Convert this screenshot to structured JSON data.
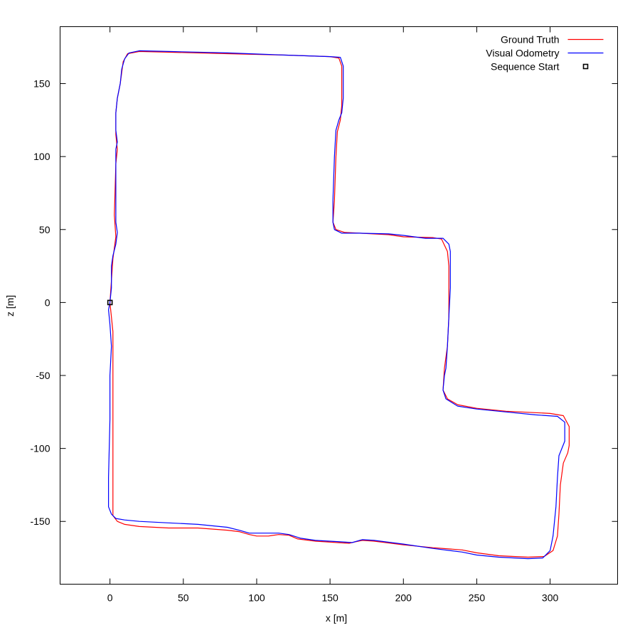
{
  "chart_data": {
    "type": "line",
    "title": "",
    "xlabel": "x [m]",
    "ylabel": "z [m]",
    "xlim": [
      -34,
      346
    ],
    "ylim": [
      -193,
      189
    ],
    "x_ticks": [
      0,
      50,
      100,
      150,
      200,
      250,
      300
    ],
    "y_ticks": [
      -150,
      -100,
      -50,
      0,
      50,
      100,
      150
    ],
    "grid": false,
    "legend_position": "top-right",
    "series": [
      {
        "name": "Ground Truth",
        "color": "#ff0000",
        "points": [
          [
            0,
            0
          ],
          [
            1,
            -10
          ],
          [
            2,
            -20
          ],
          [
            2,
            -30
          ],
          [
            2,
            -50
          ],
          [
            2,
            -80
          ],
          [
            2,
            -110
          ],
          [
            2,
            -140
          ],
          [
            2,
            -146
          ],
          [
            5,
            -150
          ],
          [
            10,
            -152
          ],
          [
            20,
            -153.5
          ],
          [
            40,
            -154.5
          ],
          [
            60,
            -154.5
          ],
          [
            80,
            -156
          ],
          [
            88,
            -157
          ],
          [
            95,
            -159
          ],
          [
            100,
            -160
          ],
          [
            108,
            -160
          ],
          [
            115,
            -159
          ],
          [
            122,
            -159.5
          ],
          [
            128,
            -162
          ],
          [
            140,
            -163.5
          ],
          [
            155,
            -164.5
          ],
          [
            163,
            -165
          ],
          [
            167,
            -164
          ],
          [
            172,
            -163
          ],
          [
            180,
            -163.5
          ],
          [
            200,
            -166
          ],
          [
            220,
            -168
          ],
          [
            240,
            -169.5
          ],
          [
            250,
            -171.5
          ],
          [
            265,
            -173.5
          ],
          [
            285,
            -174.5
          ],
          [
            296,
            -174
          ],
          [
            302,
            -170
          ],
          [
            305,
            -160
          ],
          [
            306,
            -145
          ],
          [
            307,
            -125
          ],
          [
            309,
            -110
          ],
          [
            312,
            -103
          ],
          [
            313,
            -98
          ],
          [
            313,
            -85
          ],
          [
            309,
            -77.5
          ],
          [
            300,
            -76
          ],
          [
            290,
            -75.5
          ],
          [
            270,
            -74.5
          ],
          [
            250,
            -72.5
          ],
          [
            237,
            -70
          ],
          [
            230,
            -66
          ],
          [
            227,
            -60
          ],
          [
            228,
            -45
          ],
          [
            230,
            -30
          ],
          [
            231,
            -10
          ],
          [
            231,
            10
          ],
          [
            231,
            25
          ],
          [
            230,
            35
          ],
          [
            226,
            43.5
          ],
          [
            220,
            44.5
          ],
          [
            200,
            45
          ],
          [
            190,
            46.5
          ],
          [
            170,
            47.5
          ],
          [
            160,
            48
          ],
          [
            154,
            50
          ],
          [
            152,
            55
          ],
          [
            153,
            70
          ],
          [
            154,
            100
          ],
          [
            155,
            117
          ],
          [
            157,
            125
          ],
          [
            158,
            135
          ],
          [
            158,
            150
          ],
          [
            158,
            162
          ],
          [
            156,
            167.5
          ],
          [
            150,
            168.5
          ],
          [
            120,
            169.5
          ],
          [
            80,
            170.5
          ],
          [
            40,
            171.5
          ],
          [
            20,
            172
          ],
          [
            12,
            170.5
          ],
          [
            9,
            165
          ],
          [
            7,
            150
          ],
          [
            5,
            140
          ],
          [
            4,
            130
          ],
          [
            4,
            115
          ],
          [
            5,
            105
          ],
          [
            4,
            95
          ],
          [
            3,
            60
          ],
          [
            4,
            45
          ],
          [
            2,
            30
          ],
          [
            1,
            15
          ],
          [
            0,
            0
          ]
        ]
      },
      {
        "name": "Visual Odometry",
        "color": "#0000ff",
        "points": [
          [
            0,
            0
          ],
          [
            1,
            10
          ],
          [
            1,
            25
          ],
          [
            2,
            32
          ],
          [
            4,
            40
          ],
          [
            5,
            48
          ],
          [
            4,
            55
          ],
          [
            4,
            75
          ],
          [
            4,
            100
          ],
          [
            4,
            105
          ],
          [
            5,
            110
          ],
          [
            4,
            118
          ],
          [
            4,
            130
          ],
          [
            5,
            140
          ],
          [
            7,
            150
          ],
          [
            8,
            160
          ],
          [
            10,
            167
          ],
          [
            13,
            171
          ],
          [
            20,
            172.5
          ],
          [
            40,
            172
          ],
          [
            80,
            171
          ],
          [
            120,
            169.5
          ],
          [
            150,
            168.5
          ],
          [
            157,
            168
          ],
          [
            159,
            162
          ],
          [
            159,
            150
          ],
          [
            159,
            140
          ],
          [
            158,
            130
          ],
          [
            156,
            125
          ],
          [
            154,
            118
          ],
          [
            153,
            100
          ],
          [
            152,
            70
          ],
          [
            152,
            55
          ],
          [
            153,
            50
          ],
          [
            158,
            47.5
          ],
          [
            170,
            47.5
          ],
          [
            190,
            47
          ],
          [
            200,
            46
          ],
          [
            215,
            44
          ],
          [
            227,
            44
          ],
          [
            231,
            40
          ],
          [
            232,
            35
          ],
          [
            232,
            25
          ],
          [
            232,
            10
          ],
          [
            231,
            -10
          ],
          [
            230,
            -30
          ],
          [
            229,
            -45
          ],
          [
            228,
            -50
          ],
          [
            227,
            -60
          ],
          [
            229,
            -66
          ],
          [
            237,
            -71
          ],
          [
            250,
            -73
          ],
          [
            270,
            -75
          ],
          [
            290,
            -77
          ],
          [
            305,
            -78
          ],
          [
            310,
            -82
          ],
          [
            310,
            -95
          ],
          [
            308,
            -100
          ],
          [
            306,
            -105
          ],
          [
            305,
            -120
          ],
          [
            304,
            -140
          ],
          [
            302,
            -160
          ],
          [
            300,
            -170
          ],
          [
            295,
            -175
          ],
          [
            285,
            -175.5
          ],
          [
            265,
            -174.5
          ],
          [
            250,
            -173
          ],
          [
            240,
            -171
          ],
          [
            220,
            -168.5
          ],
          [
            200,
            -165.5
          ],
          [
            180,
            -163
          ],
          [
            172,
            -162.5
          ],
          [
            165,
            -164.5
          ],
          [
            158,
            -164
          ],
          [
            140,
            -163
          ],
          [
            130,
            -161.5
          ],
          [
            122,
            -159
          ],
          [
            115,
            -158
          ],
          [
            95,
            -158
          ],
          [
            88,
            -156
          ],
          [
            80,
            -154
          ],
          [
            60,
            -152
          ],
          [
            40,
            -151
          ],
          [
            20,
            -150
          ],
          [
            10,
            -149
          ],
          [
            4,
            -148
          ],
          [
            1,
            -145
          ],
          [
            -1,
            -140
          ],
          [
            -1,
            -120
          ],
          [
            0,
            -80
          ],
          [
            0,
            -50
          ],
          [
            1,
            -30
          ],
          [
            0,
            -15
          ],
          [
            -1,
            -5
          ],
          [
            0,
            0
          ]
        ]
      }
    ],
    "markers": [
      {
        "name": "Sequence Start",
        "x": 0,
        "y": 0,
        "symbol": "square",
        "color": "#000000"
      }
    ]
  }
}
